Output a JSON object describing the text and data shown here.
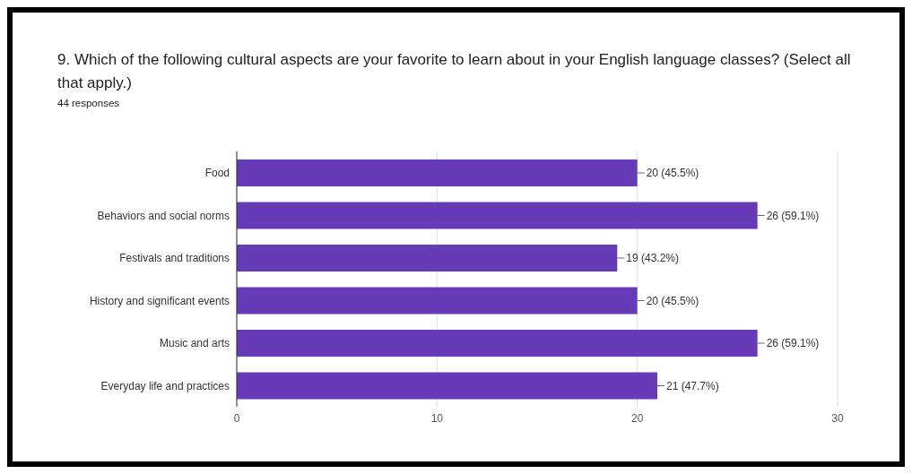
{
  "chart_data": {
    "type": "bar",
    "orientation": "horizontal",
    "title": "9. Which of the following cultural aspects are your favorite to learn about in your English language classes?  (Select all that apply.)",
    "subtitle": "44 responses",
    "categories": [
      "Food",
      "Behaviors and social norms",
      "Festivals and traditions",
      "History and significant events",
      "Music and arts",
      "Everyday life and practices"
    ],
    "values": [
      20,
      26,
      19,
      20,
      26,
      21
    ],
    "value_labels": [
      "20 (45.5%)",
      "26 (59.1%)",
      "19 (43.2%)",
      "20 (45.5%)",
      "26 (59.1%)",
      "21 (47.7%)"
    ],
    "color": "#673ab7",
    "xlim": [
      0,
      30
    ],
    "xticks": [
      0,
      10,
      20,
      30
    ],
    "grid": "x",
    "legend": false
  }
}
